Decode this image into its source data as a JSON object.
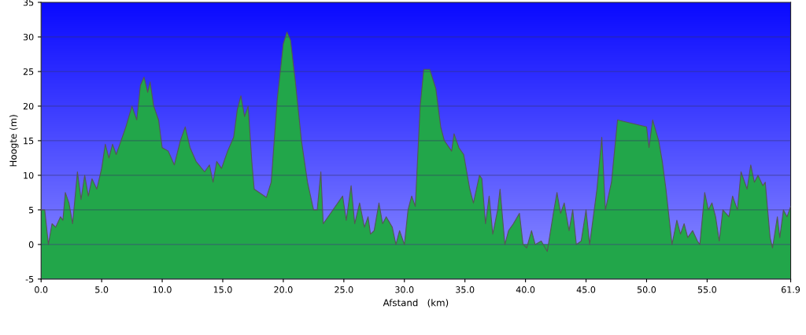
{
  "chart_data": {
    "type": "area",
    "xlabel": "Afstand   (km)",
    "ylabel": "Hoogte (m)",
    "xlim": [
      0,
      61.9
    ],
    "xticks": [
      {
        "value": 0,
        "label": "0.0"
      },
      {
        "value": 5,
        "label": "5.0"
      },
      {
        "value": 10,
        "label": "10.0"
      },
      {
        "value": 15,
        "label": "15.0"
      },
      {
        "value": 20,
        "label": "20.0"
      },
      {
        "value": 25,
        "label": "25.0"
      },
      {
        "value": 30,
        "label": "30.0"
      },
      {
        "value": 35,
        "label": "35.0"
      },
      {
        "value": 40,
        "label": "40.0"
      },
      {
        "value": 45,
        "label": "45.0"
      },
      {
        "value": 50,
        "label": "50.0"
      },
      {
        "value": 55,
        "label": "55.0"
      },
      {
        "value": 61.9,
        "label": "61.9"
      }
    ],
    "ylim": [
      -5,
      35
    ],
    "yticks": [
      -5,
      0,
      5,
      10,
      15,
      20,
      25,
      30,
      35
    ],
    "grid": "y",
    "bands": [
      {
        "axis": "y",
        "from": -5,
        "to": 0,
        "color": "#22a64a"
      }
    ],
    "x": [
      0.0,
      0.3,
      0.6,
      0.9,
      1.2,
      1.6,
      1.8,
      2.0,
      2.3,
      2.6,
      3.0,
      3.3,
      3.6,
      3.9,
      4.2,
      4.6,
      5.0,
      5.3,
      5.6,
      5.9,
      6.2,
      6.6,
      7.0,
      7.5,
      7.9,
      8.2,
      8.5,
      8.8,
      9.0,
      9.3,
      9.7,
      10.0,
      10.5,
      11.0,
      11.5,
      11.9,
      12.3,
      12.8,
      13.5,
      13.9,
      14.2,
      14.5,
      14.9,
      15.4,
      15.9,
      16.2,
      16.5,
      16.8,
      17.1,
      17.4,
      17.6,
      18.6,
      19.0,
      19.5,
      20.0,
      20.3,
      20.6,
      21.0,
      21.5,
      22.0,
      22.5,
      22.8,
      23.1,
      23.3,
      24.9,
      25.2,
      25.6,
      25.9,
      26.3,
      26.7,
      27.0,
      27.2,
      27.5,
      27.9,
      28.2,
      28.5,
      29.0,
      29.3,
      29.6,
      30.0,
      30.3,
      30.6,
      30.9,
      31.3,
      31.6,
      32.1,
      32.6,
      33.0,
      33.3,
      33.9,
      34.1,
      34.5,
      34.9,
      35.4,
      35.7,
      36.2,
      36.4,
      36.7,
      37.0,
      37.3,
      37.7,
      37.9,
      38.3,
      38.6,
      39.0,
      39.5,
      39.8,
      40.1,
      40.5,
      40.8,
      41.3,
      41.8,
      42.3,
      42.6,
      42.9,
      43.2,
      43.6,
      43.9,
      44.2,
      44.6,
      45.0,
      45.3,
      45.9,
      46.3,
      46.6,
      47.1,
      47.6,
      50.0,
      50.2,
      50.5,
      51.0,
      51.3,
      51.6,
      52.1,
      52.5,
      52.8,
      53.1,
      53.4,
      53.8,
      54.2,
      54.4,
      54.8,
      55.1,
      55.4,
      55.7,
      56.0,
      56.3,
      56.8,
      57.1,
      57.5,
      57.8,
      58.3,
      58.6,
      58.9,
      59.2,
      59.6,
      59.8,
      60.2,
      60.4,
      60.8,
      61.0,
      61.3,
      61.6,
      61.9
    ],
    "series": [
      {
        "color": "#22a64a",
        "values": [
          5,
          5,
          0,
          3,
          2.5,
          4,
          3.5,
          7.5,
          6,
          3,
          10.5,
          6.5,
          10,
          7,
          9.5,
          8,
          11,
          14.5,
          12.5,
          14.5,
          13,
          15,
          17,
          20,
          18,
          23,
          24.2,
          22,
          23.5,
          20,
          18,
          14,
          13.5,
          11.5,
          15,
          17,
          14,
          12,
          10.5,
          11.5,
          9,
          12,
          11,
          13.5,
          15.5,
          19.5,
          21.5,
          18.5,
          20,
          12,
          8,
          6.8,
          9,
          21,
          29,
          30.7,
          29.5,
          23.5,
          15,
          9,
          5,
          5,
          10.5,
          3,
          7,
          3.5,
          8.5,
          3,
          6,
          2.5,
          4,
          1.5,
          2,
          6,
          3,
          4,
          2.5,
          0,
          2,
          0,
          5,
          7,
          5.5,
          20,
          25.3,
          25.3,
          22.5,
          17,
          15,
          13.5,
          16,
          14,
          13,
          8,
          6,
          10,
          9.5,
          3,
          7,
          1.5,
          5,
          8,
          0,
          2,
          3,
          4.5,
          0,
          -0.5,
          2,
          0,
          0.5,
          -1,
          4.5,
          7.5,
          4.5,
          6,
          2,
          5,
          0,
          0.5,
          5,
          0,
          8,
          15.5,
          5,
          9,
          18,
          17,
          14,
          18,
          15,
          12,
          8,
          0,
          3.5,
          1.5,
          3,
          1,
          2,
          0.5,
          0,
          7.5,
          5,
          6,
          4,
          0.5,
          5,
          4,
          7,
          5,
          10.5,
          8,
          11.5,
          9,
          10,
          8.5,
          9,
          1,
          -0.5,
          4,
          1,
          5,
          4,
          5.5
        ]
      }
    ]
  }
}
